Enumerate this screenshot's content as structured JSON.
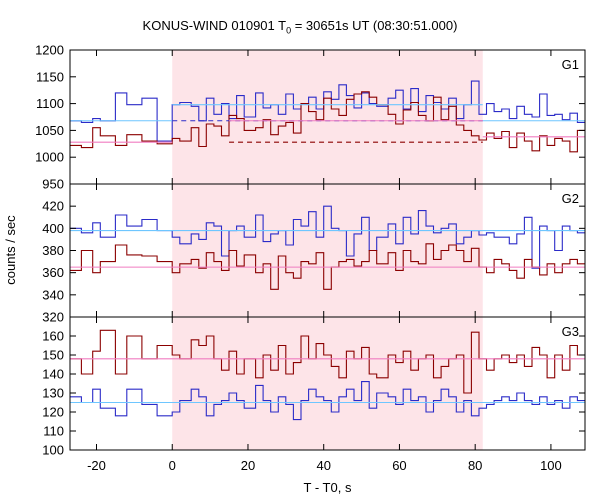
{
  "title": {
    "prefix": "KONUS-WIND 010901 T",
    "sub": "0",
    "suffix": " = 30651s UT (08:30:51.000)"
  },
  "colors": {
    "blue": "#2b2bc8",
    "red": "#8b0000",
    "cyan": "#6ec6ff",
    "pink": "#f07cc0",
    "shade": "#fde4e8"
  },
  "chart_data": {
    "type": "line",
    "title": "KONUS-WIND 010901 T0 = 30651s UT (08:30:51.000)",
    "xlabel": "T - T0, s",
    "ylabel": "counts / sec",
    "xlim": [
      -27,
      109
    ],
    "xticks": [
      -20,
      0,
      20,
      40,
      60,
      80,
      100
    ],
    "shaded_interval": [
      0,
      82
    ],
    "grid": false,
    "panels": [
      {
        "label": "G1",
        "ylim": [
          950,
          1200
        ],
        "yticks": [
          950,
          1000,
          1050,
          1100,
          1150,
          1200
        ],
        "series": [
          {
            "color": "blue",
            "x": [
              -27,
              -24,
              -21,
              -19,
              -15,
              -12,
              -8,
              -4,
              0,
              2,
              5,
              7,
              9,
              11,
              13,
              15,
              17,
              19,
              22,
              24,
              26,
              28,
              30,
              32,
              34,
              36,
              38,
              40,
              42,
              44,
              46,
              48,
              50,
              52,
              54,
              57,
              59,
              61,
              63,
              65,
              67,
              69,
              71,
              73,
              75,
              77,
              79,
              81,
              83,
              85,
              87,
              89,
              91,
              93,
              95,
              97,
              99,
              101,
              103,
              105,
              107
            ],
            "values": [
              1068,
              1065,
              1072,
              1068,
              1120,
              1098,
              1110,
              1030,
              1098,
              1102,
              1095,
              1068,
              1110,
              1080,
              1100,
              1072,
              1115,
              1075,
              1120,
              1092,
              1098,
              1080,
              1118,
              1090,
              1100,
              1112,
              1090,
              1122,
              1108,
              1135,
              1115,
              1092,
              1120,
              1100,
              1095,
              1110,
              1125,
              1090,
              1128,
              1085,
              1115,
              1102,
              1090,
              1110,
              1072,
              1098,
              1142,
              1080,
              1100,
              1085,
              1090,
              1072,
              1095,
              1080,
              1075,
              1118,
              1078,
              1080,
              1070,
              1082,
              1065
            ]
          },
          {
            "color": "red",
            "x": [
              -27,
              -24,
              -21,
              -19,
              -15,
              -12,
              -8,
              -4,
              0,
              2,
              5,
              7,
              9,
              11,
              13,
              15,
              17,
              19,
              22,
              24,
              26,
              28,
              30,
              32,
              34,
              36,
              38,
              40,
              42,
              44,
              46,
              48,
              50,
              52,
              54,
              57,
              59,
              61,
              63,
              65,
              67,
              69,
              71,
              73,
              75,
              77,
              79,
              81,
              83,
              85,
              87,
              89,
              91,
              93,
              95,
              97,
              99,
              101,
              103,
              105,
              107
            ],
            "values": [
              1022,
              1018,
              1055,
              1040,
              1022,
              1042,
              1030,
              1025,
              1035,
              1030,
              1055,
              1020,
              1062,
              1058,
              1040,
              1078,
              1072,
              1050,
              1055,
              1070,
              1042,
              1058,
              1065,
              1045,
              1100,
              1085,
              1070,
              1110,
              1090,
              1078,
              1108,
              1118,
              1122,
              1112,
              1098,
              1080,
              1062,
              1088,
              1102,
              1078,
              1068,
              1112,
              1070,
              1095,
              1060,
              1050,
              1040,
              1032,
              1045,
              1035,
              1048,
              1018,
              1045,
              1030,
              1012,
              1040,
              1022,
              1035,
              1030,
              1010,
              1050
            ]
          }
        ],
        "levels": [
          {
            "color": "cyan",
            "style": "solid",
            "x": [
              -27,
              0
            ],
            "y": 1068
          },
          {
            "color": "cyan",
            "style": "solid",
            "x": [
              82,
              109
            ],
            "y": 1068
          },
          {
            "color": "cyan",
            "style": "solid",
            "x": [
              0,
              82
            ],
            "y": 1098
          },
          {
            "color": "blue",
            "style": "dashed",
            "x": [
              0,
              82
            ],
            "y": 1068
          },
          {
            "color": "pink",
            "style": "solid",
            "x": [
              -27,
              0
            ],
            "y": 1028
          },
          {
            "color": "pink",
            "style": "solid",
            "x": [
              82,
              109
            ],
            "y": 1038
          },
          {
            "color": "pink",
            "style": "solid",
            "x": [
              15,
              82
            ],
            "y": 1068
          },
          {
            "color": "red",
            "style": "dashed",
            "x": [
              15,
              82
            ],
            "y": 1028
          }
        ]
      },
      {
        "label": "G2",
        "ylim": [
          320,
          440
        ],
        "yticks": [
          320,
          340,
          360,
          380,
          400,
          420
        ],
        "series": [
          {
            "color": "blue",
            "x": [
              -27,
              -24,
              -21,
              -19,
              -15,
              -12,
              -8,
              -4,
              0,
              2,
              5,
              7,
              9,
              11,
              13,
              15,
              17,
              19,
              22,
              24,
              26,
              28,
              30,
              32,
              34,
              36,
              38,
              40,
              42,
              44,
              46,
              48,
              50,
              52,
              54,
              57,
              59,
              61,
              63,
              65,
              67,
              69,
              71,
              73,
              75,
              77,
              79,
              81,
              83,
              85,
              87,
              89,
              91,
              93,
              95,
              97,
              99,
              101,
              103,
              105,
              107
            ],
            "values": [
              400,
              396,
              405,
              392,
              412,
              402,
              408,
              398,
              392,
              386,
              395,
              390,
              405,
              402,
              375,
              398,
              402,
              392,
              412,
              388,
              395,
              398,
              385,
              408,
              402,
              415,
              392,
              420,
              400,
              398,
              375,
              395,
              410,
              380,
              392,
              404,
              386,
              410,
              395,
              416,
              402,
              396,
              400,
              404,
              386,
              392,
              398,
              394,
              396,
              392,
              392,
              386,
              395,
              410,
              364,
              402,
              398,
              380,
              402,
              398,
              396
            ]
          },
          {
            "color": "red",
            "x": [
              -27,
              -24,
              -21,
              -19,
              -15,
              -12,
              -8,
              -4,
              0,
              2,
              5,
              7,
              9,
              11,
              13,
              15,
              17,
              19,
              22,
              24,
              26,
              28,
              30,
              32,
              34,
              36,
              38,
              40,
              42,
              44,
              46,
              48,
              50,
              52,
              54,
              57,
              59,
              61,
              63,
              65,
              67,
              69,
              71,
              73,
              75,
              77,
              79,
              81,
              83,
              85,
              87,
              89,
              91,
              93,
              95,
              97,
              99,
              101,
              103,
              105,
              107
            ],
            "values": [
              362,
              380,
              360,
              370,
              385,
              376,
              375,
              370,
              360,
              368,
              372,
              364,
              378,
              370,
              362,
              380,
              366,
              376,
              360,
              368,
              345,
              375,
              360,
              355,
              370,
              368,
              378,
              345,
              365,
              370,
              372,
              366,
              370,
              380,
              368,
              378,
              362,
              380,
              370,
              368,
              386,
              372,
              380,
              385,
              380,
              370,
              382,
              365,
              360,
              372,
              368,
              362,
              355,
              372,
              365,
              358,
              368,
              360,
              368,
              372,
              368
            ]
          }
        ],
        "levels": [
          {
            "color": "cyan",
            "style": "solid",
            "x": [
              -27,
              109
            ],
            "y": 398
          },
          {
            "color": "pink",
            "style": "solid",
            "x": [
              -27,
              109
            ],
            "y": 365
          }
        ]
      },
      {
        "label": "G3",
        "ylim": [
          100,
          170
        ],
        "yticks": [
          100,
          110,
          120,
          130,
          140,
          150,
          160
        ],
        "series": [
          {
            "color": "red",
            "x": [
              -27,
              -24,
              -21,
              -19,
              -15,
              -12,
              -8,
              -4,
              0,
              2,
              5,
              7,
              9,
              11,
              13,
              15,
              17,
              19,
              22,
              24,
              26,
              28,
              30,
              32,
              34,
              36,
              38,
              40,
              42,
              44,
              46,
              48,
              50,
              52,
              54,
              57,
              59,
              61,
              63,
              65,
              67,
              69,
              71,
              73,
              75,
              77,
              79,
              81,
              83,
              85,
              87,
              89,
              91,
              93,
              95,
              97,
              99,
              101,
              103,
              105,
              107
            ],
            "values": [
              148,
              140,
              152,
              163,
              140,
              160,
              148,
              155,
              150,
              148,
              158,
              155,
              160,
              148,
              142,
              152,
              140,
              148,
              138,
              150,
              142,
              155,
              140,
              146,
              160,
              148,
              156,
              150,
              144,
              138,
              152,
              148,
              154,
              140,
              138,
              150,
              146,
              152,
              142,
              148,
              150,
              138,
              144,
              148,
              150,
              130,
              162,
              148,
              142,
              148,
              150,
              146,
              150,
              144,
              154,
              150,
              138,
              150,
              142,
              155,
              150
            ]
          },
          {
            "color": "blue",
            "x": [
              -27,
              -24,
              -21,
              -19,
              -15,
              -12,
              -8,
              -4,
              0,
              2,
              5,
              7,
              9,
              11,
              13,
              15,
              17,
              19,
              22,
              24,
              26,
              28,
              30,
              32,
              34,
              36,
              38,
              40,
              42,
              44,
              46,
              48,
              50,
              52,
              54,
              57,
              59,
              61,
              63,
              65,
              67,
              69,
              71,
              73,
              75,
              77,
              79,
              81,
              83,
              85,
              87,
              89,
              91,
              93,
              95,
              97,
              99,
              101,
              103,
              105,
              107
            ],
            "values": [
              128,
              125,
              132,
              122,
              118,
              132,
              124,
              118,
              120,
              126,
              132,
              128,
              118,
              124,
              126,
              130,
              126,
              122,
              134,
              126,
              120,
              128,
              124,
              116,
              126,
              132,
              128,
              126,
              120,
              128,
              132,
              126,
              136,
              122,
              130,
              128,
              124,
              132,
              126,
              128,
              120,
              126,
              132,
              128,
              120,
              126,
              118,
              122,
              124,
              126,
              128,
              126,
              130,
              126,
              124,
              128,
              124,
              126,
              122,
              128,
              126
            ]
          }
        ],
        "levels": [
          {
            "color": "pink",
            "style": "solid",
            "x": [
              -27,
              109
            ],
            "y": 148
          },
          {
            "color": "cyan",
            "style": "solid",
            "x": [
              -27,
              109
            ],
            "y": 125
          }
        ]
      }
    ]
  }
}
